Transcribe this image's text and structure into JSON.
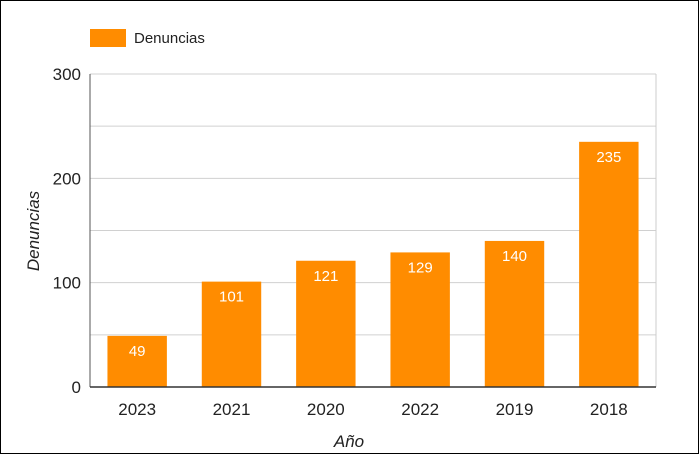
{
  "chart_data": {
    "type": "bar",
    "categories": [
      "2023",
      "2021",
      "2020",
      "2022",
      "2019",
      "2018"
    ],
    "series": [
      {
        "name": "Denuncias",
        "values": [
          49,
          101,
          121,
          129,
          140,
          235
        ],
        "color": "#ff8c00"
      }
    ],
    "data_labels": [
      "49",
      "101",
      "121",
      "129",
      "140",
      "235"
    ],
    "title": "",
    "xlabel": "Año",
    "ylabel": "Denuncias",
    "ylim": [
      0,
      300
    ],
    "yticks": [
      0,
      100,
      200,
      300
    ],
    "grid": true,
    "legend": {
      "position": "top-left",
      "entries": [
        "Denuncias"
      ]
    }
  }
}
